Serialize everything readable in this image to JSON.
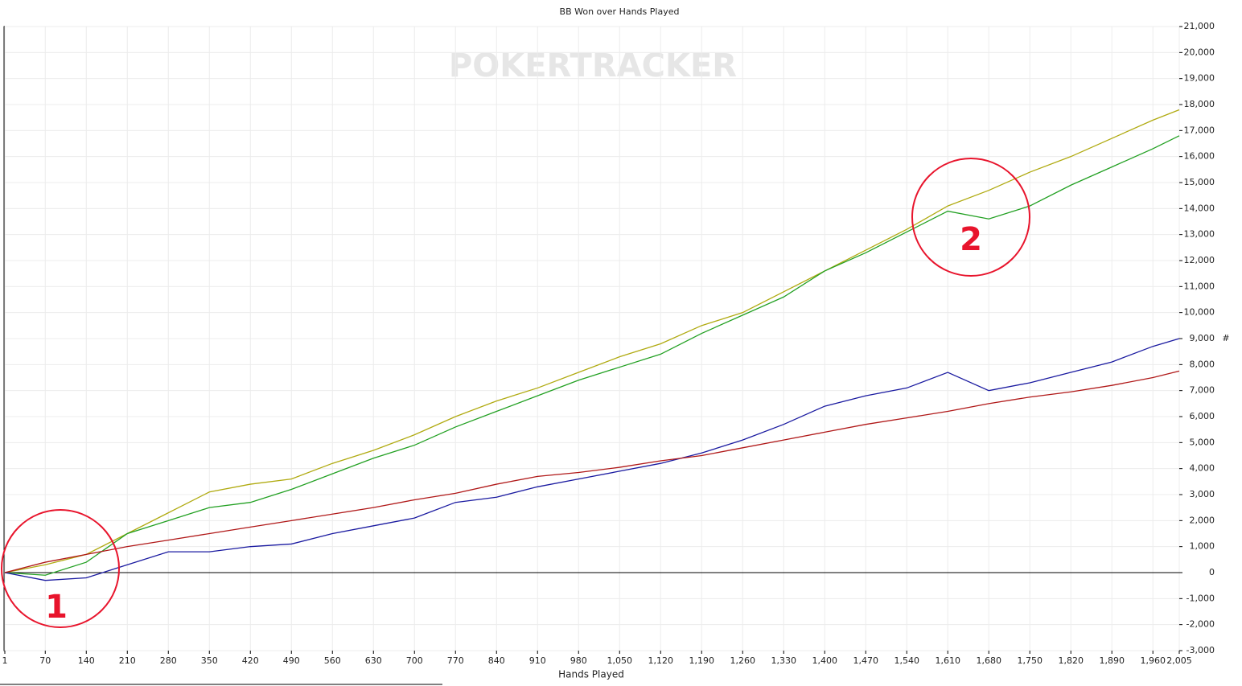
{
  "chart_data": {
    "type": "line",
    "title": "BB Won over Hands Played",
    "x_label": "Hands Played",
    "y_label": "#",
    "watermark": "POKERTRACKER",
    "grid": true,
    "x": [
      1,
      70,
      140,
      210,
      280,
      350,
      420,
      490,
      560,
      630,
      700,
      770,
      840,
      910,
      980,
      1050,
      1120,
      1190,
      1260,
      1330,
      1400,
      1470,
      1540,
      1610,
      1680,
      1750,
      1820,
      1890,
      1960,
      2005
    ],
    "series": [
      {
        "color": "#b0aa10",
        "values": [
          0,
          300,
          700,
          1500,
          2300,
          3100,
          3400,
          3600,
          4200,
          4700,
          5300,
          6000,
          6600,
          7100,
          7700,
          8300,
          8800,
          9500,
          10000,
          10800,
          11600,
          12400,
          13200,
          14100,
          14700,
          15400,
          16000,
          16700,
          17400,
          17800
        ]
      },
      {
        "color": "#22a022",
        "values": [
          0,
          -100,
          400,
          1500,
          2000,
          2500,
          2700,
          3200,
          3800,
          4400,
          4900,
          5600,
          6200,
          6800,
          7400,
          7900,
          8400,
          9200,
          9900,
          10600,
          11600,
          12300,
          13100,
          13900,
          13600,
          14100,
          14900,
          15600,
          16300,
          16800
        ]
      },
      {
        "color": "#1a1aa0",
        "values": [
          0,
          -300,
          -200,
          300,
          800,
          800,
          1000,
          1100,
          1500,
          1800,
          2100,
          2700,
          2900,
          3300,
          3600,
          3900,
          4200,
          4600,
          5100,
          5700,
          6400,
          6800,
          7100,
          7700,
          7000,
          7300,
          7700,
          8100,
          8700,
          9000
        ]
      },
      {
        "color": "#b01818",
        "values": [
          0,
          400,
          700,
          1000,
          1250,
          1500,
          1750,
          2000,
          2250,
          2500,
          2800,
          3050,
          3400,
          3700,
          3850,
          4050,
          4300,
          4500,
          4800,
          5100,
          5400,
          5700,
          5950,
          6200,
          6500,
          6750,
          6950,
          7200,
          7500,
          7750
        ]
      }
    ],
    "xlim": [
      1,
      2005
    ],
    "xticks": [
      1,
      70,
      140,
      210,
      280,
      350,
      420,
      490,
      560,
      630,
      700,
      770,
      840,
      910,
      980,
      {
        "value": 1050,
        "label": "1,050"
      },
      {
        "value": 1120,
        "label": "1,120"
      },
      {
        "value": 1190,
        "label": "1,190"
      },
      {
        "value": 1260,
        "label": "1,260"
      },
      {
        "value": 1330,
        "label": "1,330"
      },
      {
        "value": 1400,
        "label": "1,400"
      },
      {
        "value": 1470,
        "label": "1,470"
      },
      {
        "value": 1540,
        "label": "1,540"
      },
      {
        "value": 1610,
        "label": "1,610"
      },
      {
        "value": 1680,
        "label": "1,680"
      },
      {
        "value": 1750,
        "label": "1,750"
      },
      {
        "value": 1820,
        "label": "1,820"
      },
      {
        "value": 1890,
        "label": "1,890"
      },
      {
        "value": 1960,
        "label": "1,960"
      },
      {
        "value": 2005,
        "label": "2,005"
      }
    ],
    "ylim": [
      -3000,
      21000
    ],
    "yticks": [
      {
        "value": -3000,
        "label": "-3,000"
      },
      {
        "value": -2000,
        "label": "-2,000"
      },
      {
        "value": -1000,
        "label": "-1,000"
      },
      0,
      {
        "value": 1000,
        "label": "1,000"
      },
      {
        "value": 2000,
        "label": "2,000"
      },
      {
        "value": 3000,
        "label": "3,000"
      },
      {
        "value": 4000,
        "label": "4,000"
      },
      {
        "value": 5000,
        "label": "5,000"
      },
      {
        "value": 6000,
        "label": "6,000"
      },
      {
        "value": 7000,
        "label": "7,000"
      },
      {
        "value": 8000,
        "label": "8,000"
      },
      {
        "value": 9000,
        "label": "9,000"
      },
      {
        "value": 10000,
        "label": "10,000"
      },
      {
        "value": 11000,
        "label": "11,000"
      },
      {
        "value": 12000,
        "label": "12,000"
      },
      {
        "value": 13000,
        "label": "13,000"
      },
      {
        "value": 14000,
        "label": "14,000"
      },
      {
        "value": 15000,
        "label": "15,000"
      },
      {
        "value": 16000,
        "label": "16,000"
      },
      {
        "value": 17000,
        "label": "17,000"
      },
      {
        "value": 18000,
        "label": "18,000"
      },
      {
        "value": 19000,
        "label": "19,000"
      },
      {
        "value": 20000,
        "label": "20,000"
      },
      {
        "value": 21000,
        "label": "21,000"
      }
    ],
    "annotations": [
      "1",
      "2"
    ]
  }
}
